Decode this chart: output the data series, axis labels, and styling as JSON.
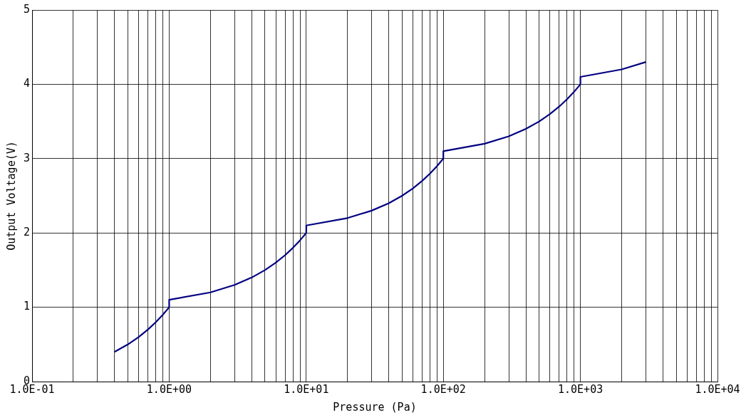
{
  "chart_data": {
    "type": "line",
    "xlabel": "Pressure (Pa)",
    "ylabel": "Output Voltage(V)",
    "log": "x",
    "grid": true,
    "legend": false,
    "marker": "none",
    "line_style": "solid",
    "x": [
      0.4,
      0.5,
      0.6,
      0.7,
      0.8,
      0.9,
      1,
      1,
      2,
      3,
      4,
      5,
      6,
      7,
      8,
      9,
      10,
      10,
      20,
      30,
      40,
      50,
      60,
      70,
      80,
      90,
      100,
      100,
      200,
      300,
      400,
      500,
      600,
      700,
      800,
      900,
      1000,
      1000,
      2000,
      3000
    ],
    "series": [
      {
        "color": "#000080",
        "values": [
          0.4,
          0.5,
          0.6,
          0.7,
          0.8,
          0.9,
          1.0,
          1.1,
          1.2,
          1.3,
          1.4,
          1.5,
          1.6,
          1.7,
          1.8,
          1.9,
          2.0,
          2.1,
          2.2,
          2.3,
          2.4,
          2.5,
          2.6,
          2.7,
          2.8,
          2.9,
          3.0,
          3.1,
          3.2,
          3.3,
          3.4,
          3.5,
          3.6,
          3.7,
          3.8,
          3.9,
          4.0,
          4.1,
          4.2,
          4.3
        ]
      }
    ],
    "xlim": [
      0.1,
      10000
    ],
    "ylim": [
      0,
      5
    ],
    "yticks": [
      0,
      1,
      2,
      3,
      4,
      5
    ],
    "xticks": [
      {
        "value": 0.1,
        "label": "1.0E-01"
      },
      {
        "value": 0.2,
        "label": null
      },
      {
        "value": 0.3,
        "label": null
      },
      {
        "value": 0.4,
        "label": null
      },
      {
        "value": 0.5,
        "label": null
      },
      {
        "value": 0.6,
        "label": null
      },
      {
        "value": 0.7,
        "label": null
      },
      {
        "value": 0.8,
        "label": null
      },
      {
        "value": 0.9,
        "label": null
      },
      {
        "value": 1,
        "label": "1.0E+00"
      },
      {
        "value": 2,
        "label": null
      },
      {
        "value": 3,
        "label": null
      },
      {
        "value": 4,
        "label": null
      },
      {
        "value": 5,
        "label": null
      },
      {
        "value": 6,
        "label": null
      },
      {
        "value": 7,
        "label": null
      },
      {
        "value": 8,
        "label": null
      },
      {
        "value": 9,
        "label": null
      },
      {
        "value": 10,
        "label": "1.0E+01"
      },
      {
        "value": 20,
        "label": null
      },
      {
        "value": 30,
        "label": null
      },
      {
        "value": 40,
        "label": null
      },
      {
        "value": 50,
        "label": null
      },
      {
        "value": 60,
        "label": null
      },
      {
        "value": 70,
        "label": null
      },
      {
        "value": 80,
        "label": null
      },
      {
        "value": 90,
        "label": null
      },
      {
        "value": 100,
        "label": "1.0E+02"
      },
      {
        "value": 200,
        "label": null
      },
      {
        "value": 300,
        "label": null
      },
      {
        "value": 400,
        "label": null
      },
      {
        "value": 500,
        "label": null
      },
      {
        "value": 600,
        "label": null
      },
      {
        "value": 700,
        "label": null
      },
      {
        "value": 800,
        "label": null
      },
      {
        "value": 900,
        "label": null
      },
      {
        "value": 1000,
        "label": "1.0E+03"
      },
      {
        "value": 2000,
        "label": null
      },
      {
        "value": 3000,
        "label": null
      },
      {
        "value": 4000,
        "label": null
      },
      {
        "value": 5000,
        "label": null
      },
      {
        "value": 6000,
        "label": null
      },
      {
        "value": 7000,
        "label": null
      },
      {
        "value": 8000,
        "label": null
      },
      {
        "value": 9000,
        "label": null
      },
      {
        "value": 10000,
        "label": "1.0E+04"
      }
    ]
  }
}
